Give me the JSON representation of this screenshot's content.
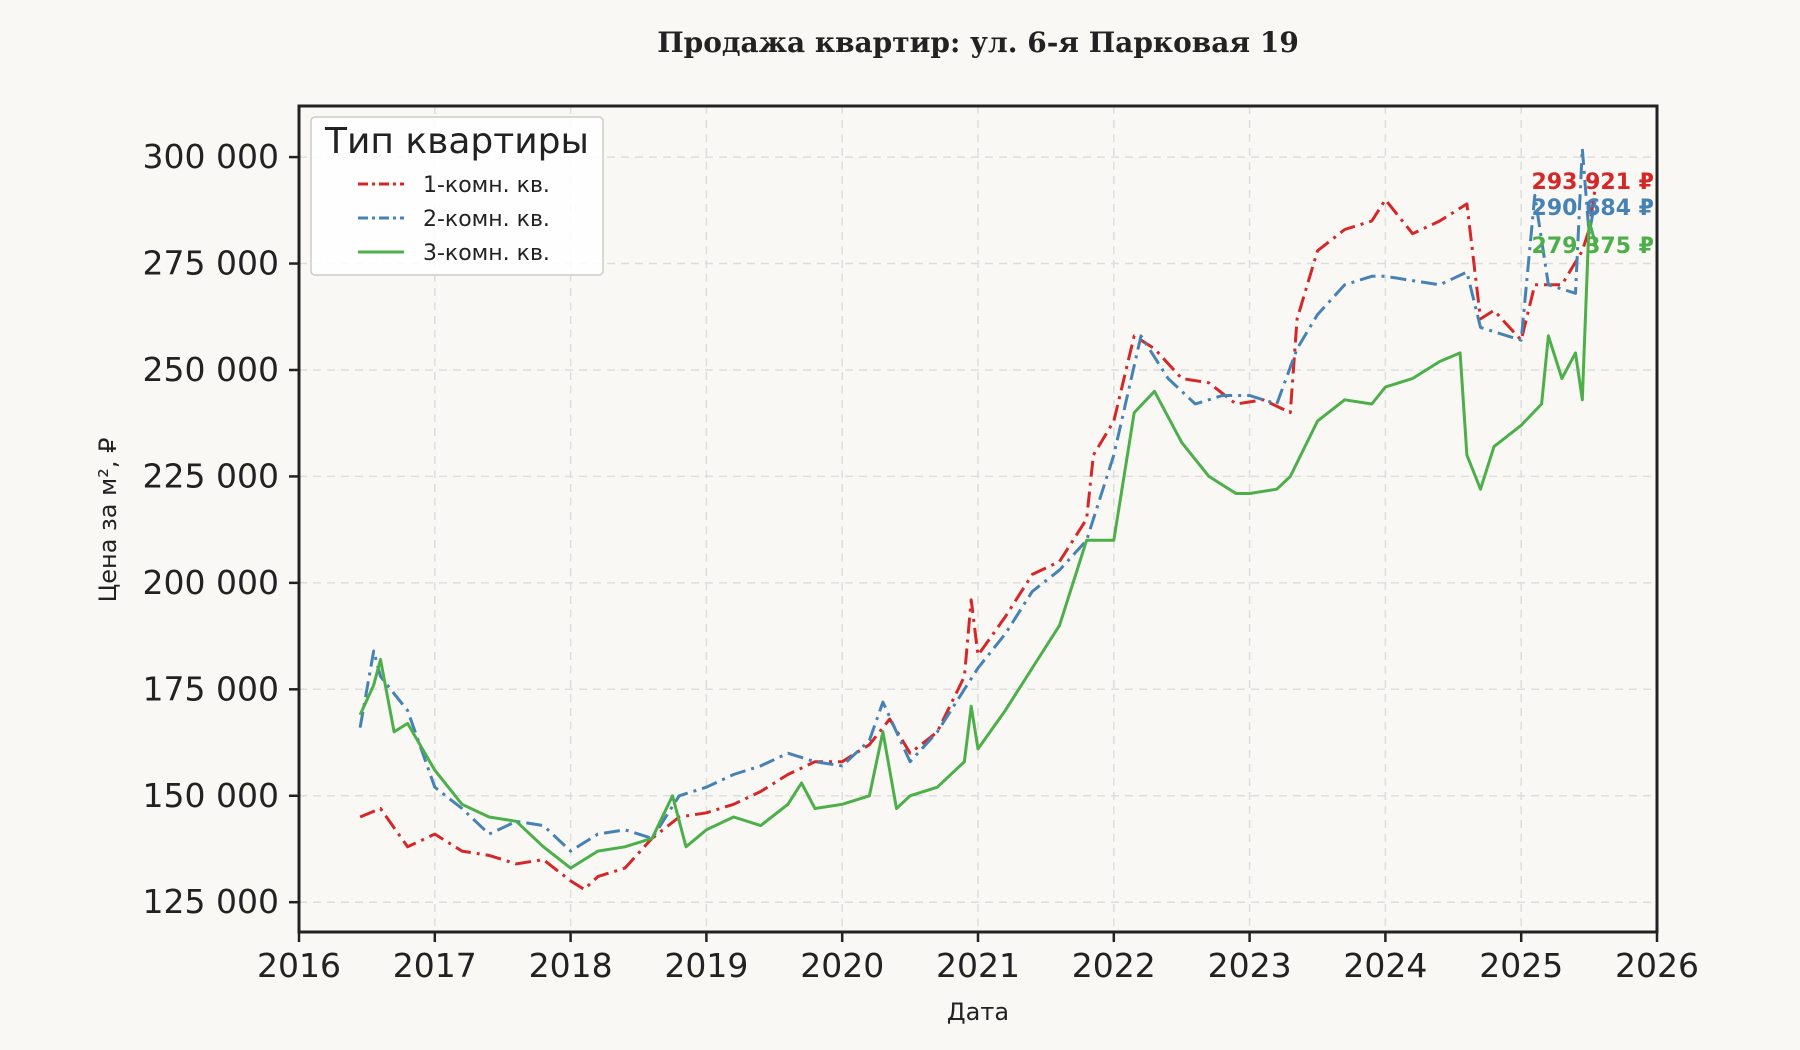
{
  "chart_data": {
    "type": "line",
    "title": "Продажа квартир: ул. 6-я Парковая 19",
    "xlabel": "Дата",
    "ylabel": "Цена за м², ₽",
    "xlim": [
      2016.0,
      2026.0
    ],
    "ylim": [
      118000,
      312000
    ],
    "x_ticks": [
      2016,
      2017,
      2018,
      2019,
      2020,
      2021,
      2022,
      2023,
      2024,
      2025,
      2026
    ],
    "x_tick_labels": [
      "2016",
      "2017",
      "2018",
      "2019",
      "2020",
      "2021",
      "2022",
      "2023",
      "2024",
      "2025",
      "2026"
    ],
    "y_ticks": [
      125000,
      150000,
      175000,
      200000,
      225000,
      250000,
      275000,
      300000
    ],
    "y_tick_labels": [
      "125 000",
      "150 000",
      "175 000",
      "200 000",
      "225 000",
      "250 000",
      "275 000",
      "300 000"
    ],
    "grid": true,
    "legend": {
      "title": "Тип квартиры",
      "placement": "top-left"
    },
    "series": [
      {
        "name": "1-комн. кв.",
        "color": "#d62728",
        "dash": "dashdot",
        "x": [
          2016.45,
          2016.6,
          2016.8,
          2017.0,
          2017.2,
          2017.4,
          2017.6,
          2017.8,
          2018.0,
          2018.1,
          2018.2,
          2018.4,
          2018.6,
          2018.8,
          2019.0,
          2019.2,
          2019.4,
          2019.6,
          2019.8,
          2020.0,
          2020.2,
          2020.35,
          2020.5,
          2020.7,
          2020.9,
          2020.95,
          2021.0,
          2021.2,
          2021.4,
          2021.6,
          2021.8,
          2021.85,
          2022.0,
          2022.15,
          2022.3,
          2022.5,
          2022.7,
          2022.9,
          2023.1,
          2023.3,
          2023.35,
          2023.5,
          2023.7,
          2023.9,
          2024.0,
          2024.2,
          2024.4,
          2024.6,
          2024.7,
          2024.8,
          2025.0,
          2025.1,
          2025.3,
          2025.45,
          2025.5,
          2025.55
        ],
        "y": [
          145000,
          147000,
          138000,
          141000,
          137000,
          136000,
          134000,
          135000,
          130000,
          128000,
          131000,
          133000,
          140000,
          145000,
          146000,
          148000,
          151000,
          155000,
          158000,
          158000,
          162000,
          168000,
          160000,
          165000,
          178000,
          196000,
          183000,
          192000,
          202000,
          205000,
          215000,
          230000,
          238000,
          258000,
          255000,
          248000,
          247000,
          242000,
          243000,
          240000,
          262000,
          278000,
          283000,
          285000,
          290000,
          282000,
          285000,
          289000,
          262000,
          264000,
          257000,
          270000,
          270000,
          278000,
          283000,
          293921
        ]
      },
      {
        "name": "2-комн. кв.",
        "color": "#4682b4",
        "dash": "dashdot",
        "x": [
          2016.45,
          2016.55,
          2016.6,
          2016.8,
          2017.0,
          2017.2,
          2017.4,
          2017.6,
          2017.8,
          2018.0,
          2018.2,
          2018.4,
          2018.6,
          2018.8,
          2019.0,
          2019.2,
          2019.4,
          2019.6,
          2019.8,
          2020.0,
          2020.2,
          2020.3,
          2020.5,
          2020.7,
          2020.9,
          2021.0,
          2021.2,
          2021.4,
          2021.6,
          2021.8,
          2022.0,
          2022.2,
          2022.4,
          2022.6,
          2022.8,
          2023.0,
          2023.2,
          2023.35,
          2023.5,
          2023.7,
          2023.9,
          2024.0,
          2024.2,
          2024.4,
          2024.6,
          2024.7,
          2024.8,
          2025.0,
          2025.1,
          2025.2,
          2025.4,
          2025.45,
          2025.5,
          2025.55
        ],
        "y": [
          166000,
          184000,
          178000,
          170000,
          152000,
          147000,
          141000,
          144000,
          143000,
          137000,
          141000,
          142000,
          140000,
          150000,
          152000,
          155000,
          157000,
          160000,
          158000,
          157000,
          163000,
          172000,
          158000,
          165000,
          175000,
          180000,
          188000,
          198000,
          203000,
          210000,
          230000,
          258000,
          248000,
          242000,
          244000,
          244000,
          242000,
          255000,
          263000,
          270000,
          272000,
          272000,
          271000,
          270000,
          273000,
          260000,
          259000,
          257000,
          291000,
          270000,
          268000,
          302000,
          282000,
          290684
        ]
      },
      {
        "name": "3-комн. кв.",
        "color": "#4daf4a",
        "dash": "solid",
        "x": [
          2016.45,
          2016.55,
          2016.6,
          2016.7,
          2016.8,
          2017.0,
          2017.2,
          2017.4,
          2017.6,
          2017.8,
          2018.0,
          2018.2,
          2018.4,
          2018.6,
          2018.75,
          2018.85,
          2019.0,
          2019.2,
          2019.4,
          2019.6,
          2019.7,
          2019.8,
          2020.0,
          2020.2,
          2020.3,
          2020.4,
          2020.5,
          2020.7,
          2020.9,
          2020.95,
          2021.0,
          2021.2,
          2021.4,
          2021.6,
          2021.8,
          2022.0,
          2022.15,
          2022.3,
          2022.5,
          2022.7,
          2022.9,
          2023.0,
          2023.2,
          2023.3,
          2023.5,
          2023.7,
          2023.9,
          2024.0,
          2024.2,
          2024.4,
          2024.55,
          2024.6,
          2024.7,
          2024.8,
          2025.0,
          2025.15,
          2025.2,
          2025.3,
          2025.4,
          2025.45,
          2025.5,
          2025.55
        ],
        "y": [
          169000,
          176000,
          182000,
          165000,
          167000,
          156000,
          148000,
          145000,
          144000,
          138000,
          133000,
          137000,
          138000,
          140000,
          150000,
          138000,
          142000,
          145000,
          143000,
          148000,
          153000,
          147000,
          148000,
          150000,
          165000,
          147000,
          150000,
          152000,
          158000,
          171000,
          161000,
          170000,
          180000,
          190000,
          210000,
          210000,
          240000,
          245000,
          233000,
          225000,
          221000,
          221000,
          222000,
          225000,
          238000,
          243000,
          242000,
          246000,
          248000,
          252000,
          254000,
          230000,
          222000,
          232000,
          237000,
          242000,
          258000,
          248000,
          254000,
          243000,
          285000,
          279375
        ]
      }
    ],
    "end_labels": [
      {
        "series": "1-комн. кв.",
        "text": "293 921 ₽"
      },
      {
        "series": "2-комн. кв.",
        "text": "290 684 ₽"
      },
      {
        "series": "3-комн. кв.",
        "text": "279 375 ₽"
      }
    ]
  }
}
